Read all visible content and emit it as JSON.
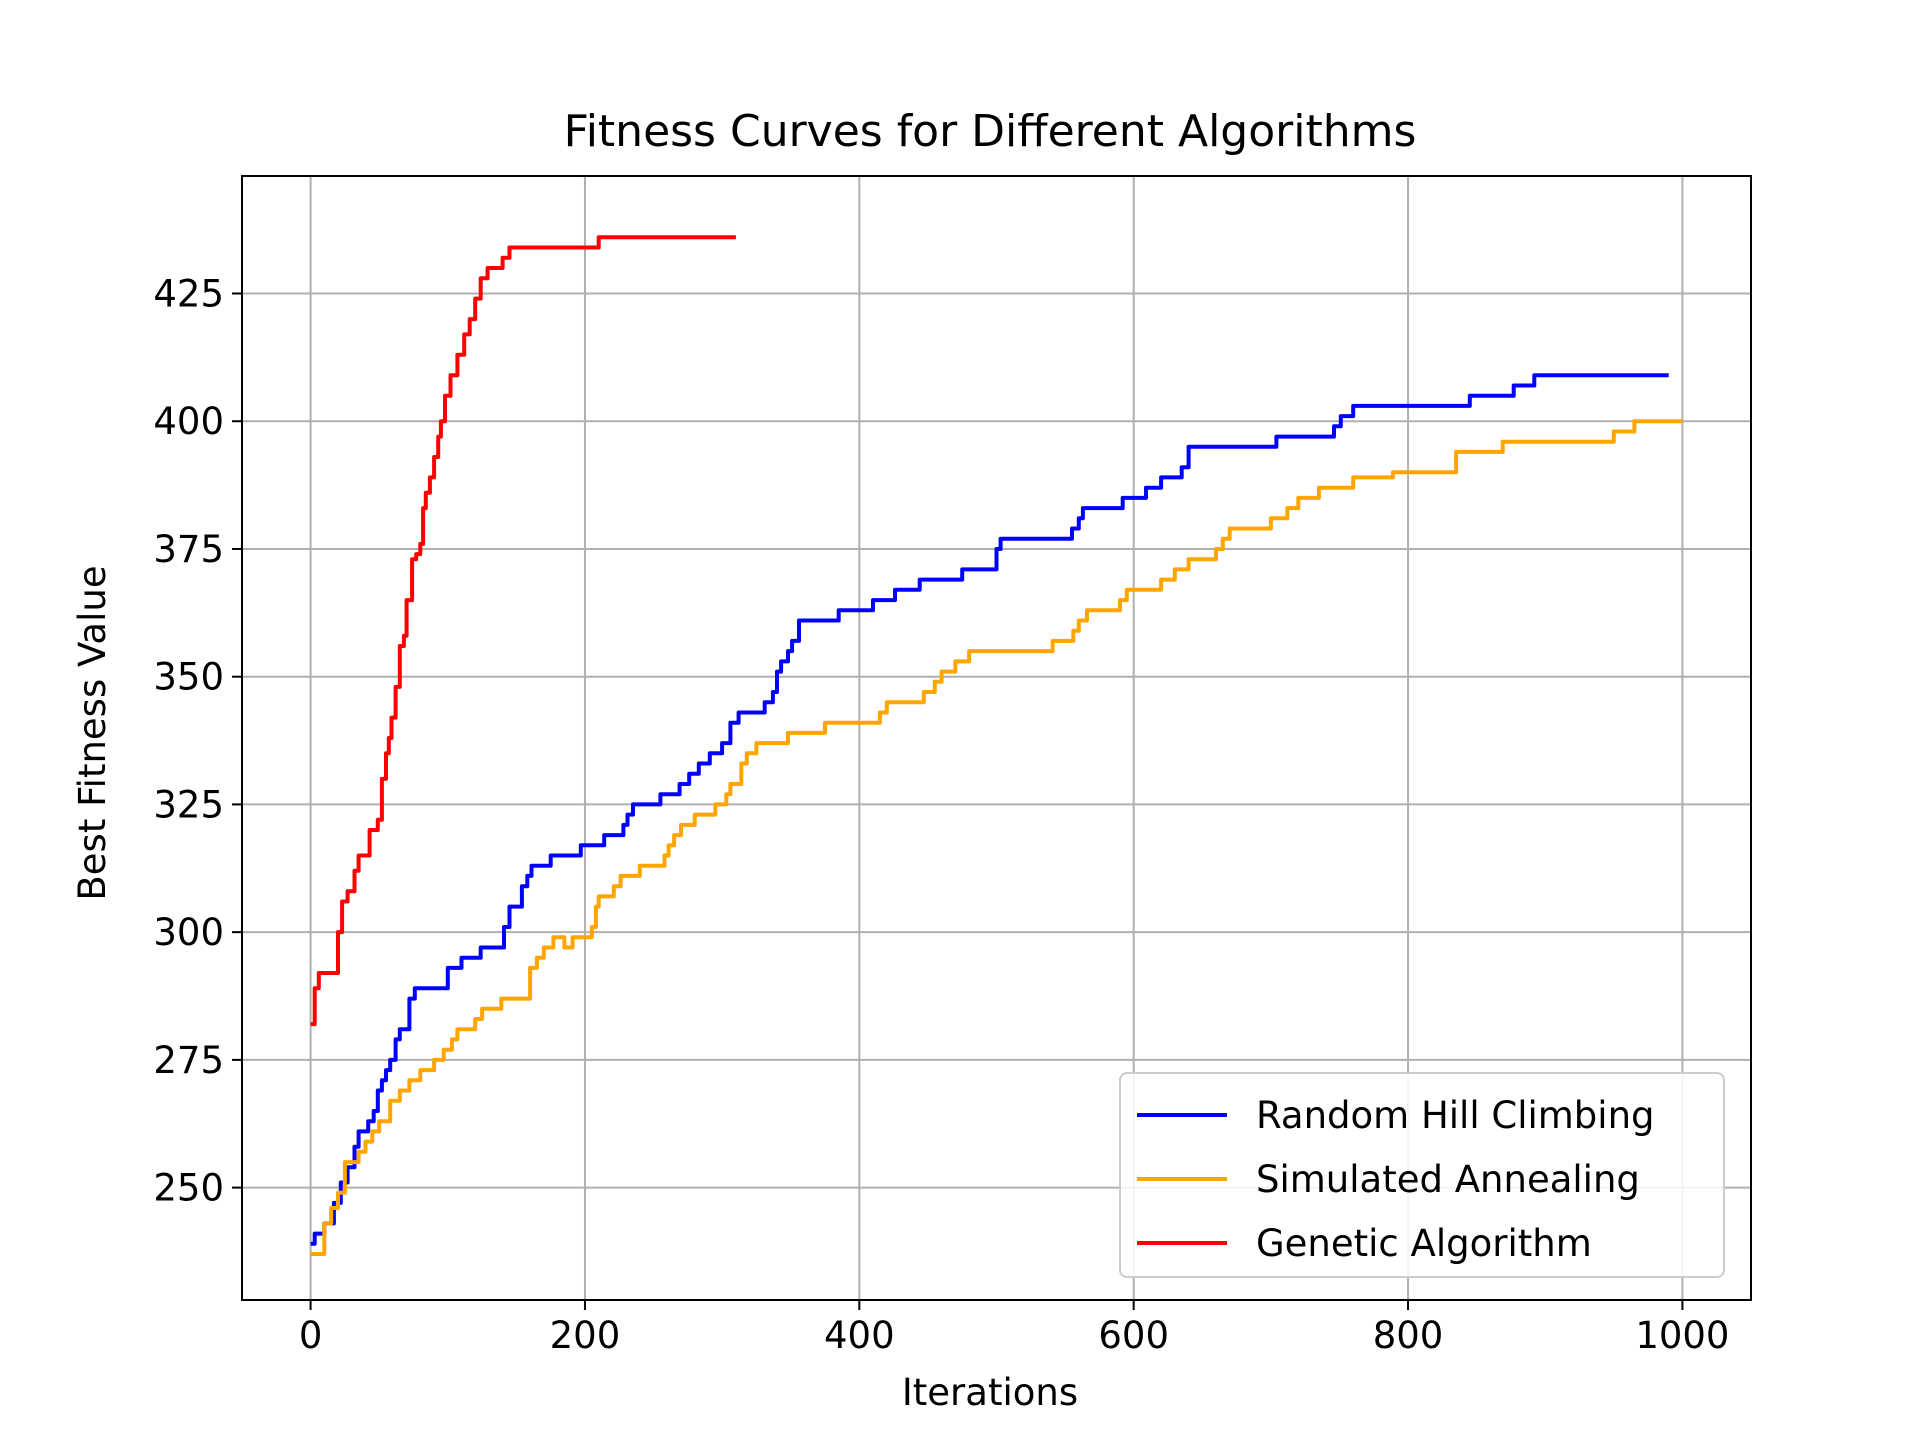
{
  "chart_data": {
    "type": "line",
    "title": "Fitness Curves for Different Algorithms",
    "xlabel": "Iterations",
    "ylabel": "Best Fitness Value",
    "xlim": [
      -50,
      1050
    ],
    "ylim": [
      228,
      448
    ],
    "xticks": [
      0,
      200,
      400,
      600,
      800,
      1000
    ],
    "yticks": [
      250,
      275,
      300,
      325,
      350,
      375,
      400,
      425
    ],
    "xtick_labels": [
      "0",
      "200",
      "400",
      "600",
      "800",
      "1000"
    ],
    "ytick_labels": [
      "250",
      "275",
      "300",
      "325",
      "350",
      "375",
      "400",
      "425"
    ],
    "grid": true,
    "legend_position": "lower-right",
    "series": [
      {
        "name": "Random Hill Climbing",
        "color": "#0000ff",
        "step": true,
        "x": [
          0,
          3,
          10,
          17,
          22,
          27,
          32,
          35,
          38,
          42,
          46,
          49,
          52,
          55,
          58,
          62,
          65,
          68,
          72,
          76,
          80,
          87,
          100,
          110,
          124,
          137,
          141,
          145,
          149,
          154,
          158,
          161,
          165,
          175,
          197,
          214,
          228,
          231,
          235,
          255,
          262,
          269,
          276,
          283,
          291,
          300,
          306,
          312,
          317,
          331,
          337,
          340,
          343,
          348,
          351,
          356,
          366,
          385,
          410,
          426,
          444,
          461,
          475,
          500,
          503,
          552,
          555,
          560,
          563,
          582,
          592,
          596,
          609,
          620,
          635,
          640,
          655,
          675,
          704,
          746,
          751,
          760,
          840,
          845,
          877,
          892,
          990
        ],
        "y": [
          239,
          241,
          243,
          247,
          251,
          254,
          258,
          261,
          261,
          263,
          265,
          269,
          271,
          273,
          275,
          279,
          281,
          281,
          287,
          289,
          289,
          289,
          293,
          295,
          297,
          297,
          301,
          305,
          305,
          309,
          311,
          313,
          313,
          315,
          317,
          319,
          321,
          323,
          325,
          327,
          327,
          329,
          331,
          333,
          335,
          337,
          341,
          343,
          343,
          345,
          347,
          351,
          353,
          355,
          357,
          361,
          361,
          363,
          365,
          367,
          369,
          369,
          371,
          375,
          377,
          377,
          379,
          381,
          383,
          383,
          385,
          385,
          387,
          389,
          391,
          395,
          395,
          395,
          397,
          399,
          401,
          403,
          403,
          405,
          407,
          409,
          409
        ]
      },
      {
        "name": "Simulated Annealing",
        "color": "#ffa500",
        "step": true,
        "x": [
          0,
          10,
          15,
          20,
          25,
          30,
          35,
          40,
          45,
          50,
          58,
          65,
          72,
          80,
          90,
          97,
          103,
          107,
          115,
          120,
          125,
          131,
          139,
          150,
          160,
          165,
          170,
          177,
          185,
          191,
          200,
          205,
          208,
          210,
          221,
          226,
          233,
          240,
          245,
          258,
          261,
          265,
          270,
          280,
          292,
          295,
          300,
          303,
          306,
          314,
          318,
          325,
          335,
          348,
          353,
          375,
          415,
          420,
          435,
          447,
          455,
          460,
          470,
          480,
          500,
          500,
          541,
          556,
          560,
          566,
          585,
          590,
          595,
          605,
          620,
          630,
          635,
          640,
          660,
          665,
          670,
          686,
          700,
          712,
          720,
          735,
          755,
          760,
          766,
          789,
          795,
          820,
          835,
          840,
          860,
          869,
          870,
          875,
          880,
          943,
          950,
          958,
          965,
          990,
          1000
        ],
        "y": [
          237,
          243,
          246,
          249,
          255,
          255,
          257,
          259,
          261,
          263,
          267,
          269,
          271,
          273,
          275,
          277,
          279,
          281,
          281,
          283,
          285,
          285,
          287,
          287,
          293,
          295,
          297,
          299,
          297,
          299,
          299,
          301,
          305,
          307,
          309,
          311,
          311,
          313,
          313,
          315,
          317,
          319,
          321,
          323,
          323,
          325,
          325,
          327,
          329,
          333,
          335,
          337,
          337,
          339,
          339,
          341,
          343,
          345,
          345,
          347,
          349,
          351,
          353,
          355,
          355,
          355,
          357,
          359,
          361,
          363,
          363,
          365,
          367,
          367,
          369,
          371,
          371,
          373,
          375,
          377,
          379,
          379,
          381,
          383,
          385,
          387,
          387,
          389,
          389,
          390,
          390,
          390,
          394,
          394,
          394,
          396,
          396,
          396,
          396,
          396,
          398,
          398,
          400,
          400,
          400
        ]
      },
      {
        "name": "Genetic Algorithm",
        "color": "#ff0000",
        "step": true,
        "x": [
          0,
          3,
          6,
          10,
          20,
          23,
          27,
          32,
          35,
          39,
          43,
          49,
          52,
          55,
          57,
          59,
          62,
          65,
          68,
          70,
          74,
          77,
          80,
          82,
          84,
          87,
          90,
          93,
          95,
          98,
          102,
          107,
          112,
          116,
          120,
          124,
          129,
          133,
          140,
          145,
          150,
          155,
          170,
          185,
          205,
          210,
          250,
          280,
          310
        ],
        "y": [
          282,
          289,
          292,
          292,
          300,
          306,
          308,
          312,
          315,
          315,
          320,
          322,
          330,
          335,
          338,
          342,
          348,
          356,
          358,
          365,
          373,
          374,
          376,
          383,
          386,
          389,
          393,
          397,
          400,
          405,
          409,
          413,
          417,
          420,
          424,
          428,
          430,
          430,
          432,
          434,
          434,
          434,
          434,
          434,
          434,
          436,
          436,
          436,
          436
        ]
      }
    ]
  }
}
